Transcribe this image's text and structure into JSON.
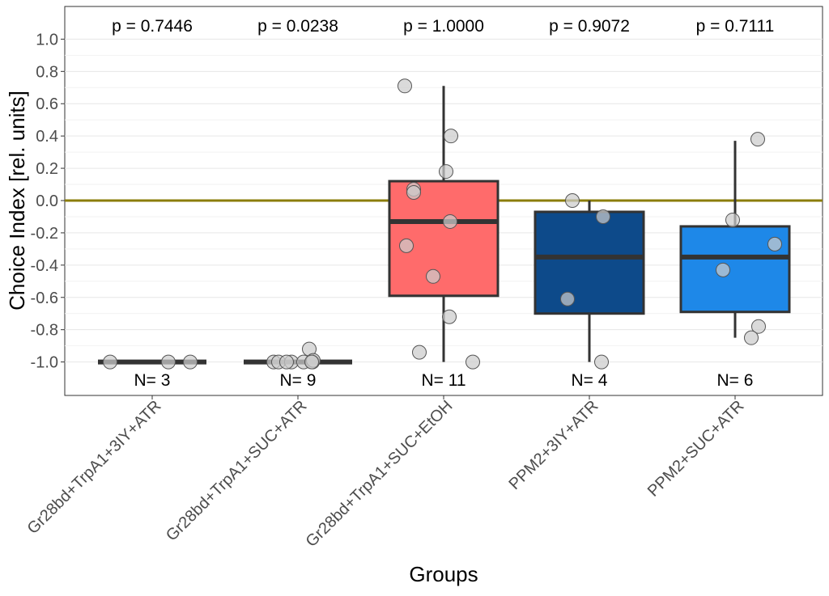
{
  "chart_data": {
    "type": "box",
    "title": "",
    "xlabel": "Groups",
    "ylabel": "Choice Index [rel. units]",
    "ylim": [
      -1.2,
      1.2
    ],
    "yticks": [
      -1.0,
      -0.8,
      -0.6,
      -0.4,
      -0.2,
      0.0,
      0.2,
      0.4,
      0.6,
      0.8,
      1.0
    ],
    "ytick_labels": [
      "-1.0",
      "-0.8",
      "-0.6",
      "-0.4",
      "-0.2",
      "0.0",
      "0.2",
      "0.4",
      "0.6",
      "0.8",
      "1.0"
    ],
    "reference_line": {
      "y": 0.0,
      "color": "#8B7D0A"
    },
    "grid": true,
    "legend": "none",
    "categories": [
      "Gr28bd+TrpA1+3IY+ATR",
      "Gr28bd+TrpA1+SUC+ATR",
      "Gr28bd+TrpA1+SUC+EtOH",
      "PPM2+3IY+ATR",
      "PPM2+SUC+ATR"
    ],
    "boxes": [
      {
        "whisker_low": -1.0,
        "q1": -1.0,
        "median": -1.0,
        "q3": -1.0,
        "whisker_high": -1.0,
        "fill": "#333333",
        "points": [
          -1.0,
          -1.0,
          -1.0
        ],
        "p_label": "p = 0.7446",
        "n_label": "N= 3"
      },
      {
        "whisker_low": -1.0,
        "q1": -1.0,
        "median": -1.0,
        "q3": -1.0,
        "whisker_high": -1.0,
        "fill": "#333333",
        "points": [
          -1.0,
          -1.0,
          -1.0,
          -1.0,
          -1.0,
          -1.0,
          -0.92,
          -0.99,
          -1.0
        ],
        "p_label": "p = 0.0238",
        "n_label": "N= 9"
      },
      {
        "whisker_low": -1.0,
        "q1": -0.59,
        "median": -0.13,
        "q3": 0.12,
        "whisker_high": 0.71,
        "fill": "#FF6B6B",
        "points": [
          0.71,
          0.4,
          0.18,
          0.07,
          0.05,
          -0.13,
          -0.28,
          -0.47,
          -0.72,
          -0.94,
          -1.0
        ],
        "p_label": "p = 1.0000",
        "n_label": "N= 11"
      },
      {
        "whisker_low": -1.0,
        "q1": -0.7,
        "median": -0.35,
        "q3": -0.07,
        "whisker_high": 0.0,
        "fill": "#0D4A8A",
        "points": [
          0.0,
          -0.1,
          -0.61,
          -1.0
        ],
        "p_label": "p = 0.9072",
        "n_label": "N= 4"
      },
      {
        "whisker_low": -0.85,
        "q1": -0.69,
        "median": -0.35,
        "q3": -0.16,
        "whisker_high": 0.37,
        "fill": "#1E88E8",
        "points": [
          0.38,
          -0.12,
          -0.27,
          -0.43,
          -0.78,
          -0.85
        ],
        "p_label": "p = 0.7111",
        "n_label": "N= 6"
      }
    ]
  }
}
